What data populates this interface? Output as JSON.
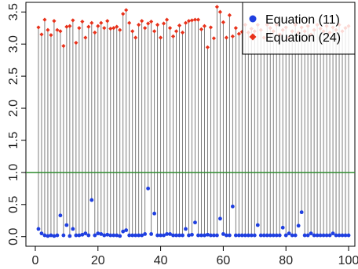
{
  "chart_data": {
    "type": "scatter",
    "xlim": [
      -3,
      102
    ],
    "ylim": [
      -0.15,
      3.65
    ],
    "x_ticks": [
      0,
      20,
      40,
      60,
      80,
      100
    ],
    "x_tick_labels": [
      "0",
      "20",
      "40",
      "60",
      "80",
      "100"
    ],
    "y_ticks": [
      0.0,
      0.5,
      1.0,
      1.5,
      2.0,
      2.5,
      3.0,
      3.5
    ],
    "y_tick_labels": [
      "0.0",
      "0.5",
      "1.0",
      "1.5",
      "2.0",
      "2.5",
      "3.0",
      "3.5"
    ],
    "reference_line": {
      "y": 1.0,
      "color": "#2e8b2e"
    },
    "legend": {
      "position": "top-right"
    },
    "series": [
      {
        "name": "Equation (11)",
        "marker": "circle",
        "color": "#1f3fe0",
        "x": [
          1,
          2,
          3,
          4,
          5,
          6,
          7,
          8,
          9,
          10,
          11,
          12,
          13,
          14,
          15,
          16,
          17,
          18,
          19,
          20,
          21,
          22,
          23,
          24,
          25,
          26,
          27,
          28,
          29,
          30,
          31,
          32,
          33,
          34,
          35,
          36,
          37,
          38,
          39,
          40,
          41,
          42,
          43,
          44,
          45,
          46,
          47,
          48,
          49,
          50,
          51,
          52,
          53,
          54,
          55,
          56,
          57,
          58,
          59,
          60,
          61,
          62,
          63,
          64,
          65,
          66,
          67,
          68,
          69,
          70,
          71,
          72,
          73,
          74,
          75,
          76,
          77,
          78,
          79,
          80,
          81,
          82,
          83,
          84,
          85,
          86,
          87,
          88,
          89,
          90,
          91,
          92,
          93,
          94,
          95,
          96,
          97,
          98,
          99,
          100
        ],
        "y": [
          0.12,
          0.05,
          0.02,
          0.01,
          0.02,
          0.01,
          0.02,
          0.33,
          0.02,
          0.18,
          0.01,
          0.12,
          0.02,
          0.02,
          0.03,
          0.05,
          0.02,
          0.57,
          0.02,
          0.05,
          0.04,
          0.02,
          0.03,
          0.02,
          0.02,
          0.02,
          0.01,
          0.08,
          0.1,
          0.02,
          0.02,
          0.02,
          0.02,
          0.02,
          0.04,
          0.75,
          0.04,
          0.36,
          0.02,
          0.02,
          0.02,
          0.04,
          0.04,
          0.02,
          0.02,
          0.02,
          0.02,
          0.12,
          0.02,
          0.03,
          0.22,
          0.02,
          0.02,
          0.02,
          0.03,
          0.02,
          0.02,
          0.02,
          0.28,
          0.04,
          0.02,
          0.02,
          0.47,
          0.02,
          0.02,
          0.02,
          0.02,
          0.02,
          0.02,
          0.02,
          0.18,
          0.02,
          0.02,
          0.02,
          0.02,
          0.02,
          0.02,
          0.02,
          0.14,
          0.02,
          0.05,
          0.02,
          0.02,
          0.17,
          0.38,
          0.02,
          0.02,
          0.05,
          0.02,
          0.02,
          0.02,
          0.02,
          0.02,
          0.02,
          0.05,
          0.02,
          0.02,
          0.02,
          0.02,
          0.02
        ]
      },
      {
        "name": "Equation (24)",
        "marker": "diamond",
        "color": "#e8311a",
        "x": [
          1,
          2,
          3,
          4,
          5,
          6,
          7,
          8,
          9,
          10,
          11,
          12,
          13,
          14,
          15,
          16,
          17,
          18,
          19,
          20,
          21,
          22,
          23,
          24,
          25,
          26,
          27,
          28,
          29,
          30,
          31,
          32,
          33,
          34,
          35,
          36,
          37,
          38,
          39,
          40,
          41,
          42,
          43,
          44,
          45,
          46,
          47,
          48,
          49,
          50,
          51,
          52,
          53,
          54,
          55,
          56,
          57,
          58,
          59,
          60,
          61,
          62,
          63,
          64,
          65,
          66,
          67,
          68,
          69,
          70,
          71,
          72,
          73,
          74,
          75,
          76,
          77,
          78,
          79,
          80,
          81,
          82,
          83,
          84,
          85,
          86,
          87,
          88,
          89,
          90,
          91,
          92,
          93,
          94,
          95,
          96,
          97,
          98,
          99,
          100
        ],
        "y": [
          3.26,
          3.15,
          3.38,
          3.22,
          3.14,
          3.36,
          3.22,
          3.2,
          2.97,
          3.27,
          3.28,
          3.37,
          3.02,
          3.25,
          3.35,
          3.1,
          3.27,
          3.33,
          3.18,
          3.28,
          3.33,
          3.25,
          3.36,
          3.24,
          3.25,
          3.27,
          3.22,
          3.47,
          3.53,
          3.33,
          3.2,
          3.1,
          3.3,
          3.36,
          3.25,
          3.32,
          3.35,
          3.2,
          3.3,
          3.1,
          3.32,
          3.38,
          3.25,
          3.12,
          3.2,
          3.29,
          3.18,
          3.33,
          3.36,
          3.37,
          3.38,
          3.38,
          3.23,
          3.28,
          2.95,
          3.26,
          3.09,
          3.58,
          3.5,
          3.34,
          3.1,
          3.45,
          3.12,
          3.25,
          3.16,
          3.19,
          3.3,
          3.18,
          3.24,
          3.2,
          3.3,
          3.22,
          3.1,
          3.3,
          3.25,
          3.2,
          3.3,
          3.15,
          3.22,
          3.26,
          3.1,
          3.2,
          3.3,
          3.18,
          3.26,
          3.2,
          3.28,
          3.15,
          3.22,
          3.3,
          3.24,
          3.2,
          3.28,
          3.18,
          3.26,
          3.22,
          3.3,
          3.2,
          3.25,
          3.28
        ]
      }
    ]
  }
}
